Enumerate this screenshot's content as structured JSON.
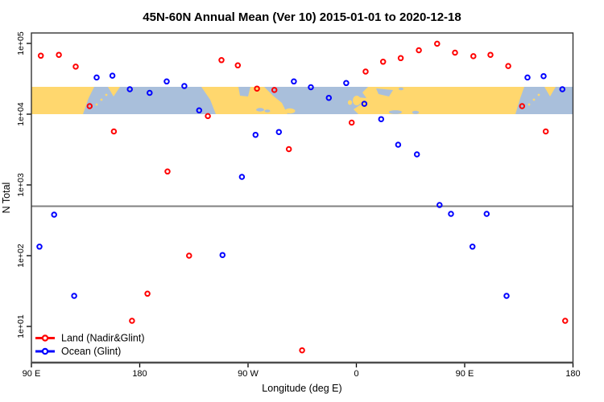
{
  "page": {
    "background": "#FFFFFF"
  },
  "chart_data": {
    "type": "scatter",
    "title": "45N-60N Annual Mean (Ver 10)   2015-01-01 to 2020-12-18",
    "xlabel": "Longitude (deg E)",
    "ylabel": "N Total",
    "x_axis": {
      "span_deg": 450,
      "start_label": "90 E",
      "ticks": [
        {
          "label": "90 E",
          "deg": 0
        },
        {
          "label": "180",
          "deg": 90
        },
        {
          "label": "90 W",
          "deg": 180
        },
        {
          "label": "0",
          "deg": 270
        },
        {
          "label": "90 E",
          "deg": 360
        },
        {
          "label": "180",
          "deg": 450
        }
      ]
    },
    "y_axis": {
      "scale": "log",
      "ylim": [
        3,
        140000
      ],
      "ticks": [
        {
          "label": "1e+01",
          "value": 10
        },
        {
          "label": "1e+02",
          "value": 100
        },
        {
          "label": "1e+03",
          "value": 1000
        },
        {
          "label": "1e+04",
          "value": 10000
        },
        {
          "label": "1e+05",
          "value": 100000
        }
      ]
    },
    "reference_line": {
      "value": 500,
      "color": "#808080"
    },
    "map_band": {
      "description": "45N-60N world map strip",
      "n_bottom": 10000,
      "n_top": 24300,
      "land_color": "#FFD76E",
      "ocean_color": "#A9BFDB"
    },
    "legend": {
      "position": "bottom-left"
    },
    "series": [
      {
        "name": "Land (Nadir&Glint)",
        "color": "#FF0000",
        "points": [
          {
            "lon": 97.8,
            "deg": 7.8,
            "n": 67000
          },
          {
            "lon": 112.8,
            "deg": 22.8,
            "n": 69000
          },
          {
            "lon": 126.8,
            "deg": 36.8,
            "n": 47000
          },
          {
            "lon": 138.4,
            "deg": 48.4,
            "n": 13000
          },
          {
            "lon": 158.5,
            "deg": 68.5,
            "n": 5700
          },
          {
            "lon": 173.6,
            "deg": 83.6,
            "n": 12
          },
          {
            "lon": -173.6,
            "deg": 96.4,
            "n": 29
          },
          {
            "lon": -156.9,
            "deg": 113.1,
            "n": 1550
          },
          {
            "lon": -139.0,
            "deg": 131.0,
            "n": 100
          },
          {
            "lon": -123.4,
            "deg": 146.6,
            "n": 9400
          },
          {
            "lon": -112.1,
            "deg": 157.9,
            "n": 58000
          },
          {
            "lon": -98.5,
            "deg": 171.5,
            "n": 49000
          },
          {
            "lon": -82.6,
            "deg": 187.4,
            "n": 23000
          },
          {
            "lon": -68.1,
            "deg": 201.9,
            "n": 22000
          },
          {
            "lon": -56.1,
            "deg": 213.9,
            "n": 3200
          },
          {
            "lon": -45.1,
            "deg": 224.9,
            "n": 4.6
          },
          {
            "lon": -3.9,
            "deg": 266.1,
            "n": 7600
          },
          {
            "lon": 7.7,
            "deg": 277.7,
            "n": 40000
          },
          {
            "lon": 22.2,
            "deg": 292.2,
            "n": 55000
          },
          {
            "lon": 36.9,
            "deg": 306.9,
            "n": 62000
          },
          {
            "lon": 51.9,
            "deg": 321.9,
            "n": 80000
          },
          {
            "lon": 67.1,
            "deg": 337.1,
            "n": 99000
          },
          {
            "lon": 82.0,
            "deg": 352.0,
            "n": 74000
          },
          {
            "lon": 97.2,
            "deg": 367.2,
            "n": 66000
          },
          {
            "lon": 111.4,
            "deg": 381.4,
            "n": 69000
          },
          {
            "lon": 126.2,
            "deg": 396.2,
            "n": 48000
          },
          {
            "lon": 137.7,
            "deg": 407.7,
            "n": 13000
          },
          {
            "lon": 157.4,
            "deg": 427.4,
            "n": 5700
          },
          {
            "lon": 173.5,
            "deg": 443.5,
            "n": 12
          }
        ]
      },
      {
        "name": "Ocean (Glint)",
        "color": "#0000FF",
        "points": [
          {
            "lon": 96.7,
            "deg": 6.7,
            "n": 134
          },
          {
            "lon": 108.9,
            "deg": 18.9,
            "n": 380
          },
          {
            "lon": 125.5,
            "deg": 35.5,
            "n": 27
          },
          {
            "lon": 144.2,
            "deg": 54.2,
            "n": 33000
          },
          {
            "lon": 157.3,
            "deg": 67.3,
            "n": 35000
          },
          {
            "lon": 171.8,
            "deg": 81.8,
            "n": 22500
          },
          {
            "lon": -171.8,
            "deg": 98.2,
            "n": 20000
          },
          {
            "lon": -157.6,
            "deg": 112.4,
            "n": 29000
          },
          {
            "lon": -142.9,
            "deg": 127.1,
            "n": 25000
          },
          {
            "lon": -130.6,
            "deg": 139.4,
            "n": 11300
          },
          {
            "lon": -111.2,
            "deg": 158.8,
            "n": 102
          },
          {
            "lon": -95.1,
            "deg": 174.9,
            "n": 1300
          },
          {
            "lon": -83.8,
            "deg": 186.2,
            "n": 5100
          },
          {
            "lon": -64.4,
            "deg": 205.6,
            "n": 5600
          },
          {
            "lon": -51.9,
            "deg": 218.1,
            "n": 29000
          },
          {
            "lon": -37.8,
            "deg": 232.2,
            "n": 24000
          },
          {
            "lon": -22.9,
            "deg": 247.1,
            "n": 17000
          },
          {
            "lon": -8.4,
            "deg": 261.6,
            "n": 27500
          },
          {
            "lon": 6.6,
            "deg": 276.6,
            "n": 14000
          },
          {
            "lon": 20.6,
            "deg": 290.6,
            "n": 8500
          },
          {
            "lon": 34.7,
            "deg": 304.7,
            "n": 3700
          },
          {
            "lon": 50.3,
            "deg": 320.3,
            "n": 2700
          },
          {
            "lon": 69.1,
            "deg": 339.1,
            "n": 520
          },
          {
            "lon": 78.6,
            "deg": 348.6,
            "n": 390
          },
          {
            "lon": 96.5,
            "deg": 366.5,
            "n": 134
          },
          {
            "lon": 108.3,
            "deg": 378.3,
            "n": 390
          },
          {
            "lon": 124.8,
            "deg": 394.8,
            "n": 27
          },
          {
            "lon": 142.2,
            "deg": 412.2,
            "n": 33000
          },
          {
            "lon": 155.6,
            "deg": 425.6,
            "n": 34500
          },
          {
            "lon": 171.2,
            "deg": 441.2,
            "n": 22500
          }
        ]
      }
    ]
  }
}
